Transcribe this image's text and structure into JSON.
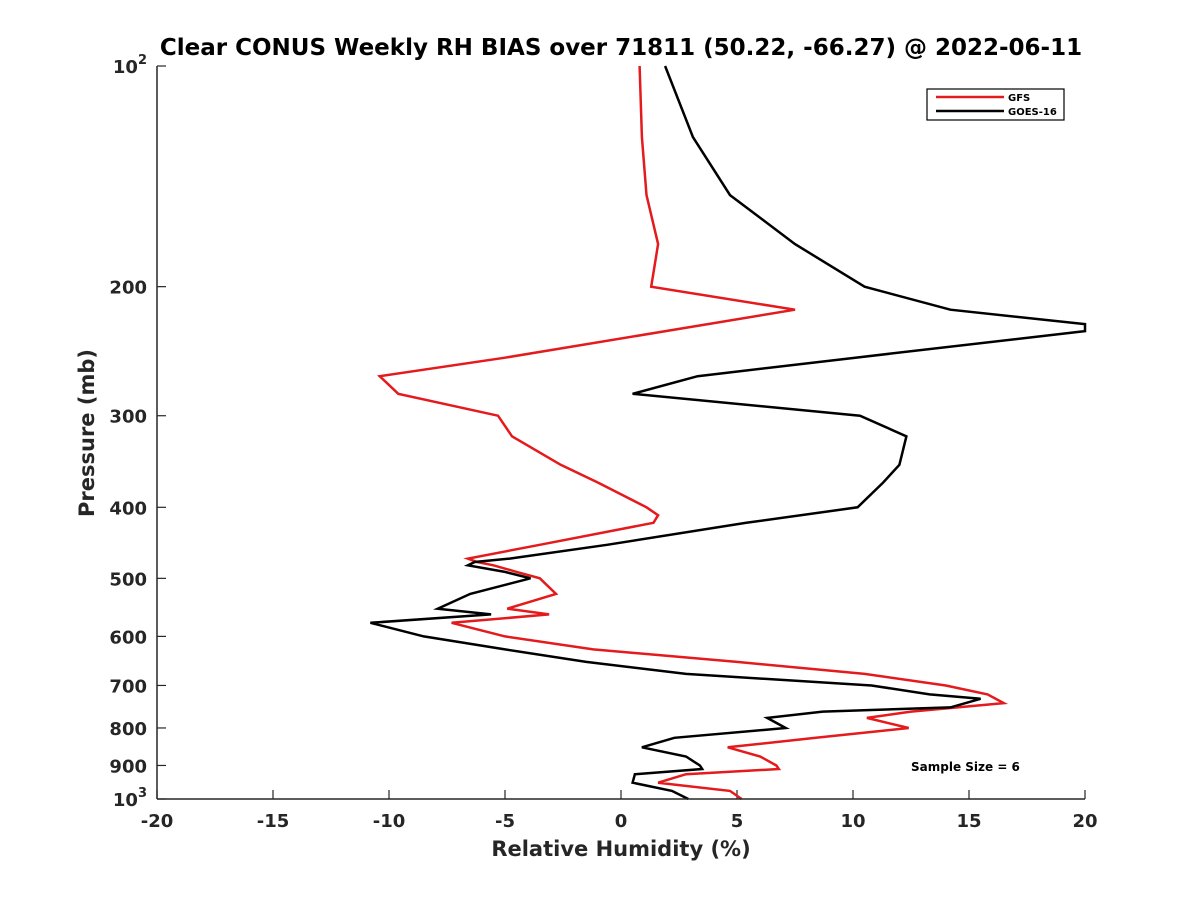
{
  "chart_data": {
    "type": "line",
    "title": "Clear CONUS Weekly RH BIAS over 71811 (50.22, -66.27) @ 2022-06-11",
    "xlabel": "Relative Humidity (%)",
    "ylabel": "Pressure (mb)",
    "xlim": [
      -20,
      20
    ],
    "ylim": [
      100,
      1000
    ],
    "yscale": "log",
    "y_reversed": true,
    "grid": false,
    "legend_position": "top-right",
    "x_ticks": [
      {
        "value": -20,
        "label": "-20"
      },
      {
        "value": -15,
        "label": "-15"
      },
      {
        "value": -10,
        "label": "-10"
      },
      {
        "value": -5,
        "label": "-5"
      },
      {
        "value": 0,
        "label": "0"
      },
      {
        "value": 5,
        "label": "5"
      },
      {
        "value": 10,
        "label": "10"
      },
      {
        "value": 15,
        "label": "15"
      },
      {
        "value": 20,
        "label": "20"
      }
    ],
    "y_ticks": [
      {
        "value": 100,
        "base": "10",
        "exp": "2"
      },
      {
        "value": 200,
        "base": "200",
        "exp": ""
      },
      {
        "value": 300,
        "base": "300",
        "exp": ""
      },
      {
        "value": 400,
        "base": "400",
        "exp": ""
      },
      {
        "value": 500,
        "base": "500",
        "exp": ""
      },
      {
        "value": 600,
        "base": "600",
        "exp": ""
      },
      {
        "value": 700,
        "base": "700",
        "exp": ""
      },
      {
        "value": 800,
        "base": "800",
        "exp": ""
      },
      {
        "value": 900,
        "base": "900",
        "exp": ""
      },
      {
        "value": 1000,
        "base": "10",
        "exp": "3"
      }
    ],
    "series": [
      {
        "name": "GFS",
        "color": "#e41a1c",
        "points": [
          {
            "x": 0.8,
            "p": 100
          },
          {
            "x": 0.9,
            "p": 125
          },
          {
            "x": 1.1,
            "p": 150
          },
          {
            "x": 1.6,
            "p": 175
          },
          {
            "x": 1.3,
            "p": 200
          },
          {
            "x": 7.5,
            "p": 215
          },
          {
            "x": -5.0,
            "p": 250
          },
          {
            "x": -10.4,
            "p": 265
          },
          {
            "x": -9.6,
            "p": 280
          },
          {
            "x": -5.3,
            "p": 300
          },
          {
            "x": -4.7,
            "p": 320
          },
          {
            "x": -2.6,
            "p": 350
          },
          {
            "x": -1.0,
            "p": 370
          },
          {
            "x": 1.1,
            "p": 400
          },
          {
            "x": 1.6,
            "p": 410
          },
          {
            "x": 1.4,
            "p": 420
          },
          {
            "x": -3.5,
            "p": 450
          },
          {
            "x": -6.6,
            "p": 470
          },
          {
            "x": -6.2,
            "p": 475
          },
          {
            "x": -5.5,
            "p": 480
          },
          {
            "x": -4.5,
            "p": 490
          },
          {
            "x": -3.5,
            "p": 500
          },
          {
            "x": -2.8,
            "p": 525
          },
          {
            "x": -4.9,
            "p": 550
          },
          {
            "x": -3.1,
            "p": 560
          },
          {
            "x": -7.3,
            "p": 575
          },
          {
            "x": -5.0,
            "p": 600
          },
          {
            "x": -1.2,
            "p": 625
          },
          {
            "x": 5.0,
            "p": 650
          },
          {
            "x": 10.5,
            "p": 675
          },
          {
            "x": 14.0,
            "p": 700
          },
          {
            "x": 15.8,
            "p": 720
          },
          {
            "x": 16.5,
            "p": 740
          },
          {
            "x": 12.5,
            "p": 760
          },
          {
            "x": 10.6,
            "p": 775
          },
          {
            "x": 12.4,
            "p": 800
          },
          {
            "x": 8.4,
            "p": 825
          },
          {
            "x": 4.6,
            "p": 850
          },
          {
            "x": 6.0,
            "p": 875
          },
          {
            "x": 6.7,
            "p": 900
          },
          {
            "x": 6.8,
            "p": 910
          },
          {
            "x": 2.8,
            "p": 925
          },
          {
            "x": 1.6,
            "p": 950
          },
          {
            "x": 4.7,
            "p": 975
          },
          {
            "x": 5.2,
            "p": 1000
          }
        ]
      },
      {
        "name": "GOES-16",
        "color": "#000000",
        "points": [
          {
            "x": 1.9,
            "p": 100
          },
          {
            "x": 3.1,
            "p": 125
          },
          {
            "x": 4.7,
            "p": 150
          },
          {
            "x": 7.5,
            "p": 175
          },
          {
            "x": 10.5,
            "p": 200
          },
          {
            "x": 14.2,
            "p": 215
          },
          {
            "x": 20.0,
            "p": 225
          },
          {
            "x": 20.0,
            "p": 230
          },
          {
            "x": 10.1,
            "p": 250
          },
          {
            "x": 3.3,
            "p": 265
          },
          {
            "x": 0.5,
            "p": 280
          },
          {
            "x": 10.3,
            "p": 300
          },
          {
            "x": 12.3,
            "p": 320
          },
          {
            "x": 12.0,
            "p": 350
          },
          {
            "x": 11.3,
            "p": 370
          },
          {
            "x": 10.2,
            "p": 400
          },
          {
            "x": 5.4,
            "p": 420
          },
          {
            "x": -0.6,
            "p": 450
          },
          {
            "x": -4.8,
            "p": 470
          },
          {
            "x": -6.3,
            "p": 475
          },
          {
            "x": -6.6,
            "p": 480
          },
          {
            "x": -5.0,
            "p": 490
          },
          {
            "x": -3.9,
            "p": 500
          },
          {
            "x": -6.5,
            "p": 525
          },
          {
            "x": -7.9,
            "p": 550
          },
          {
            "x": -5.6,
            "p": 560
          },
          {
            "x": -10.8,
            "p": 575
          },
          {
            "x": -8.5,
            "p": 600
          },
          {
            "x": -5.0,
            "p": 625
          },
          {
            "x": -1.5,
            "p": 650
          },
          {
            "x": 2.8,
            "p": 675
          },
          {
            "x": 10.8,
            "p": 700
          },
          {
            "x": 13.3,
            "p": 720
          },
          {
            "x": 15.5,
            "p": 730
          },
          {
            "x": 14.2,
            "p": 750
          },
          {
            "x": 8.7,
            "p": 760
          },
          {
            "x": 6.3,
            "p": 775
          },
          {
            "x": 7.1,
            "p": 800
          },
          {
            "x": 2.3,
            "p": 825
          },
          {
            "x": 0.9,
            "p": 850
          },
          {
            "x": 2.8,
            "p": 875
          },
          {
            "x": 3.4,
            "p": 900
          },
          {
            "x": 3.5,
            "p": 910
          },
          {
            "x": 0.6,
            "p": 925
          },
          {
            "x": 0.5,
            "p": 950
          },
          {
            "x": 2.2,
            "p": 975
          },
          {
            "x": 2.9,
            "p": 1000
          }
        ]
      }
    ],
    "annotations": [
      {
        "text": "Sample Size = 6"
      }
    ]
  }
}
